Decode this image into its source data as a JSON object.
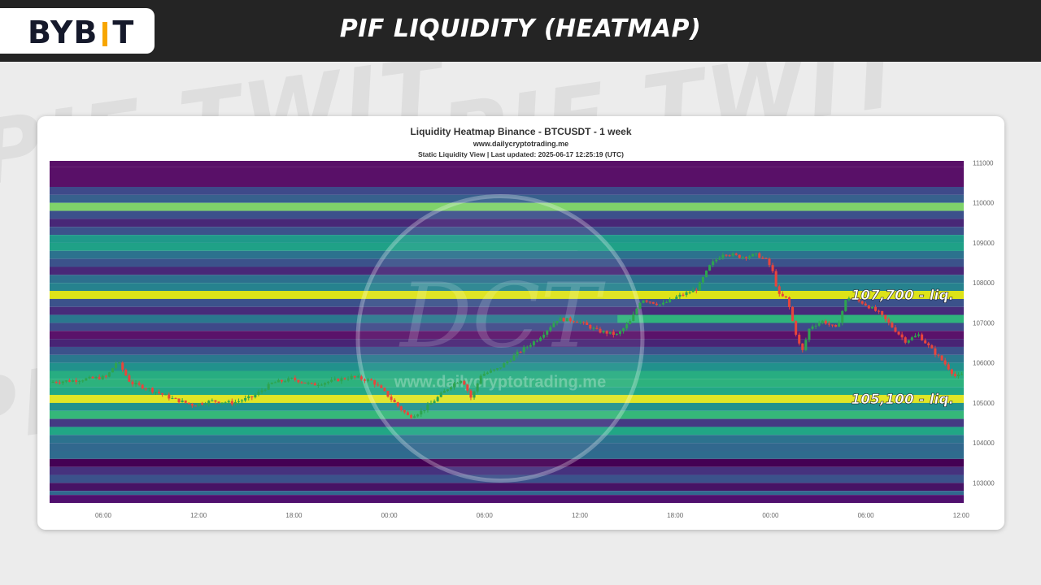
{
  "header": {
    "brand_left": "BYB",
    "brand_right": "T",
    "title": "PIF LIQUIDITY (HEATMAP)"
  },
  "background_watermark": "PIF TWIT",
  "colors": {
    "topbar": "#242424",
    "brand_accent": "#f7a600",
    "brand_text": "#15192b",
    "candle_up": "#2ea44f",
    "candle_down": "#e8453c"
  },
  "chart_data": {
    "type": "heatmap",
    "title": "Liquidity Heatmap Binance - BTCUSDT - 1 week",
    "subtitle": "www.dailycryptotrading.me",
    "subtitle2": "Static Liquidity View | Last updated: 2025-06-17 12:25:19 (UTC)",
    "watermark_logo": "DCT",
    "watermark_text": "www.dailycryptotrading.me",
    "x_ticks": [
      "06:00",
      "12:00",
      "18:00",
      "00:00",
      "06:00",
      "12:00",
      "18:00",
      "00:00",
      "06:00",
      "12:00"
    ],
    "x_range_hours": [
      -5.3,
      52.2
    ],
    "y_ticks": [
      103000,
      104000,
      105000,
      106000,
      107000,
      108000,
      109000,
      110000,
      111000
    ],
    "ylim": [
      102500,
      111050
    ],
    "grid": false,
    "liquidity_bands": [
      {
        "low": 110900,
        "high": 111050,
        "color": "#591068"
      },
      {
        "low": 110400,
        "high": 110900,
        "color": "#591068"
      },
      {
        "low": 110200,
        "high": 110400,
        "color": "#3e4a8a"
      },
      {
        "low": 110000,
        "high": 110200,
        "color": "#37618d"
      },
      {
        "low": 109800,
        "high": 110000,
        "color": "#7fd36a"
      },
      {
        "low": 109600,
        "high": 109800,
        "color": "#3c508b"
      },
      {
        "low": 109400,
        "high": 109600,
        "color": "#482777"
      },
      {
        "low": 109200,
        "high": 109400,
        "color": "#3b528b"
      },
      {
        "low": 109000,
        "high": 109200,
        "color": "#1f998a"
      },
      {
        "low": 108800,
        "high": 109000,
        "color": "#1fa187"
      },
      {
        "low": 108600,
        "high": 108800,
        "color": "#2c728e"
      },
      {
        "low": 108400,
        "high": 108600,
        "color": "#3b528b"
      },
      {
        "low": 108200,
        "high": 108400,
        "color": "#482878"
      },
      {
        "low": 108000,
        "high": 108200,
        "color": "#2d708e"
      },
      {
        "low": 107800,
        "high": 108000,
        "color": "#26828e"
      },
      {
        "low": 107600,
        "high": 107800,
        "color": "#1fa088"
      },
      {
        "low": 107400,
        "high": 107600,
        "color": "#3b528b"
      },
      {
        "low": 107200,
        "high": 107400,
        "color": "#472c7a"
      },
      {
        "low": 107000,
        "high": 107200,
        "color": "#2a788e"
      },
      {
        "low": 106800,
        "high": 107000,
        "color": "#3e4989"
      },
      {
        "low": 106600,
        "high": 106800,
        "color": "#5a126a"
      },
      {
        "low": 106400,
        "high": 106600,
        "color": "#482475"
      },
      {
        "low": 106200,
        "high": 106400,
        "color": "#3b528b"
      },
      {
        "low": 106000,
        "high": 106200,
        "color": "#2a788e"
      },
      {
        "low": 105800,
        "high": 106000,
        "color": "#21918c"
      },
      {
        "low": 105600,
        "high": 105800,
        "color": "#27ad81"
      },
      {
        "low": 105400,
        "high": 105600,
        "color": "#2db27d"
      },
      {
        "low": 105200,
        "high": 105400,
        "color": "#22a884"
      },
      {
        "low": 105000,
        "high": 105200,
        "color": "#2fb47c"
      },
      {
        "low": 104800,
        "high": 105000,
        "color": "#21918c"
      },
      {
        "low": 104600,
        "high": 104800,
        "color": "#35b779"
      },
      {
        "low": 104400,
        "high": 104600,
        "color": "#443a83"
      },
      {
        "low": 104200,
        "high": 104400,
        "color": "#21a685"
      },
      {
        "low": 104000,
        "high": 104200,
        "color": "#2c728e"
      },
      {
        "low": 103800,
        "high": 104000,
        "color": "#31688e"
      },
      {
        "low": 103600,
        "high": 103800,
        "color": "#2f6b8e"
      },
      {
        "low": 103400,
        "high": 103600,
        "color": "#440154"
      },
      {
        "low": 103200,
        "high": 103400,
        "color": "#46327e"
      },
      {
        "low": 103000,
        "high": 103200,
        "color": "#3b528b"
      },
      {
        "low": 102800,
        "high": 103000,
        "color": "#471365"
      },
      {
        "low": 102700,
        "high": 102800,
        "color": "#31688e"
      },
      {
        "low": 102500,
        "high": 102700,
        "color": "#500f6e"
      }
    ],
    "highlight_levels": [
      {
        "value": 107700,
        "label": "107,700 - liq.",
        "color": "#dde318"
      },
      {
        "value": 105100,
        "label": "105,100 - liq.",
        "color": "#e0e526"
      }
    ],
    "right_segments": [
      {
        "from_hours": 36.5,
        "low": 107600,
        "high": 107800,
        "color": "#dde318"
      },
      {
        "from_hours": 34.5,
        "low": 108800,
        "high": 109000,
        "color": "#1fa187"
      },
      {
        "from_hours": 37.5,
        "low": 107000,
        "high": 107200,
        "color": "#2fb47c"
      }
    ],
    "price_path": [
      {
        "t": -5.3,
        "p": 105520
      },
      {
        "t": -3.5,
        "p": 105560
      },
      {
        "t": -2.5,
        "p": 105600
      },
      {
        "t": -1.0,
        "p": 105650
      },
      {
        "t": -0.2,
        "p": 106050
      },
      {
        "t": 0.8,
        "p": 105500
      },
      {
        "t": 2.2,
        "p": 105350
      },
      {
        "t": 4.0,
        "p": 105100
      },
      {
        "t": 5.5,
        "p": 104950
      },
      {
        "t": 7.0,
        "p": 105050
      },
      {
        "t": 8.5,
        "p": 105000
      },
      {
        "t": 10.0,
        "p": 105150
      },
      {
        "t": 11.5,
        "p": 105500
      },
      {
        "t": 13.0,
        "p": 105600
      },
      {
        "t": 14.5,
        "p": 105450
      },
      {
        "t": 16.0,
        "p": 105550
      },
      {
        "t": 17.5,
        "p": 105650
      },
      {
        "t": 19.0,
        "p": 105550
      },
      {
        "t": 20.0,
        "p": 105250
      },
      {
        "t": 21.0,
        "p": 104900
      },
      {
        "t": 21.8,
        "p": 104650
      },
      {
        "t": 22.8,
        "p": 104800
      },
      {
        "t": 24.0,
        "p": 105150
      },
      {
        "t": 25.0,
        "p": 105450
      },
      {
        "t": 25.8,
        "p": 105600
      },
      {
        "t": 26.5,
        "p": 105100
      },
      {
        "t": 27.2,
        "p": 105700
      },
      {
        "t": 28.5,
        "p": 105850
      },
      {
        "t": 30.0,
        "p": 106250
      },
      {
        "t": 31.5,
        "p": 106600
      },
      {
        "t": 33.0,
        "p": 107100
      },
      {
        "t": 34.5,
        "p": 107050
      },
      {
        "t": 36.0,
        "p": 106800
      },
      {
        "t": 37.5,
        "p": 106700
      },
      {
        "t": 38.5,
        "p": 107050
      },
      {
        "t": 39.3,
        "p": 107600
      },
      {
        "t": 40.8,
        "p": 107450
      },
      {
        "t": 42.0,
        "p": 107650
      },
      {
        "t": 43.5,
        "p": 107850
      },
      {
        "t": 44.5,
        "p": 108450
      },
      {
        "t": 45.5,
        "p": 108750
      },
      {
        "t": 46.8,
        "p": 108650
      },
      {
        "t": 48.0,
        "p": 108700
      },
      {
        "t": 48.8,
        "p": 108550
      },
      {
        "t": 49.3,
        "p": 108200
      },
      {
        "t": 49.6,
        "p": 107700
      },
      {
        "t": 50.3,
        "p": 107600
      },
      {
        "t": 50.8,
        "p": 106900
      },
      {
        "t": 51.4,
        "p": 106250
      },
      {
        "t": 52.0,
        "p": 106900
      },
      {
        "t": 53.0,
        "p": 107050
      },
      {
        "t": 54.0,
        "p": 106850
      },
      {
        "t": 54.8,
        "p": 107650
      },
      {
        "t": 56.0,
        "p": 107500
      },
      {
        "t": 57.2,
        "p": 107250
      },
      {
        "t": 58.2,
        "p": 106900
      },
      {
        "t": 59.2,
        "p": 106550
      },
      {
        "t": 60.2,
        "p": 106700
      },
      {
        "t": 61.0,
        "p": 106400
      },
      {
        "t": 62.0,
        "p": 106050
      },
      {
        "t": 63.0,
        "p": 105650
      },
      {
        "t": 63.6,
        "p": 105700
      }
    ]
  }
}
